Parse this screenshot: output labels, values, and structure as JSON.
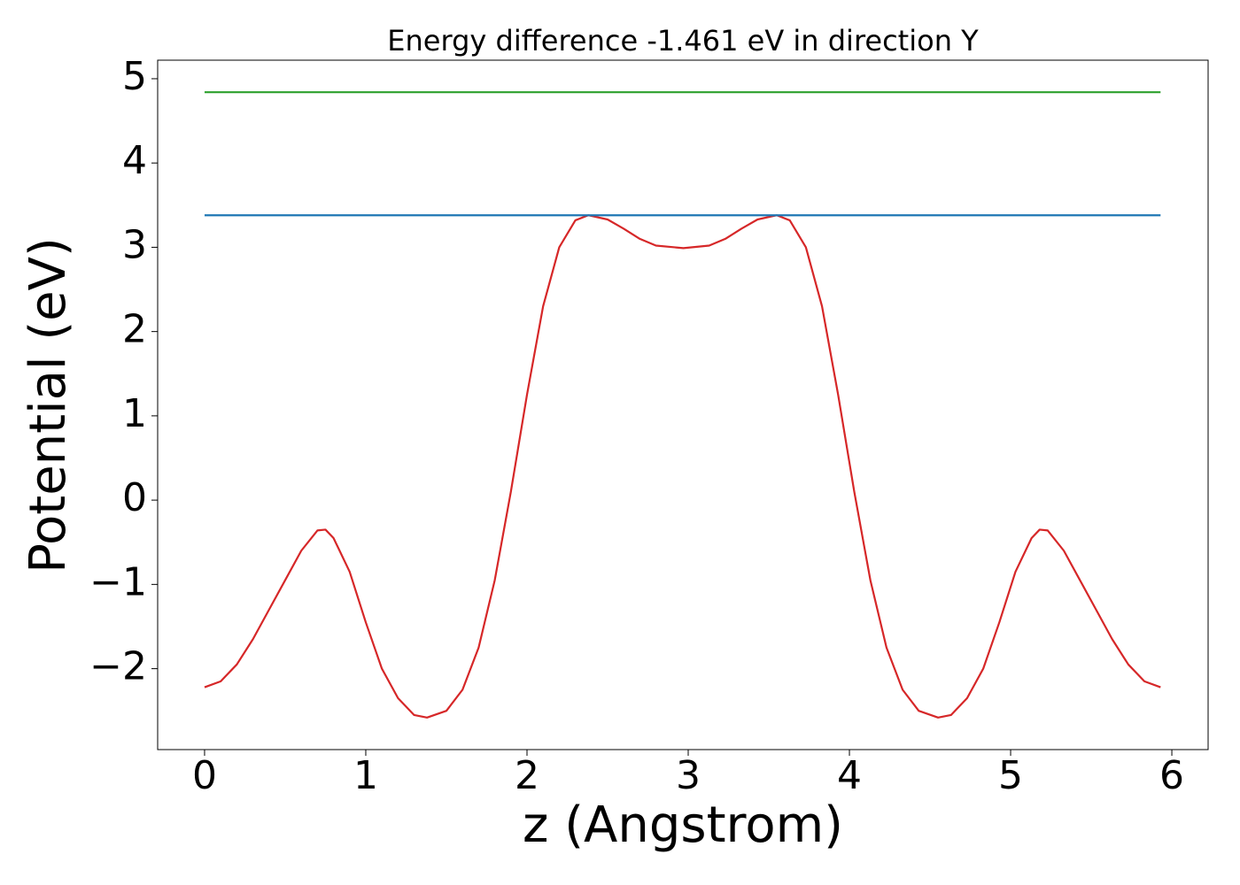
{
  "chart_data": {
    "type": "line",
    "title": "Energy difference -1.461 eV in direction Y",
    "xlabel": "z (Angstrom)",
    "ylabel": "Potential (eV)",
    "xlim": [
      -0.291,
      6.225
    ],
    "ylim": [
      -2.96,
      5.22
    ],
    "xticks": [
      0,
      1,
      2,
      3,
      4,
      5,
      6
    ],
    "yticks": [
      {
        "value": -2,
        "label": "−2"
      },
      {
        "value": -1,
        "label": "−1"
      },
      0,
      1,
      2,
      3,
      4,
      5
    ],
    "grid": false,
    "series": [
      {
        "color": "#d62728",
        "x": [
          0,
          0.1,
          0.2,
          0.3,
          0.4,
          0.5,
          0.6,
          0.7,
          0.75,
          0.8,
          0.9,
          1.0,
          1.1,
          1.2,
          1.3,
          1.38,
          1.5,
          1.6,
          1.7,
          1.8,
          1.9,
          2.0,
          2.1,
          2.2,
          2.3,
          2.38,
          2.5,
          2.6,
          2.7,
          2.8,
          2.97,
          3.13,
          3.23,
          3.33,
          3.43,
          3.55,
          3.63,
          3.73,
          3.83,
          3.93,
          4.03,
          4.13,
          4.23,
          4.33,
          4.43,
          4.55,
          4.63,
          4.73,
          4.83,
          4.93,
          5.03,
          5.13,
          5.18,
          5.23,
          5.33,
          5.43,
          5.53,
          5.63,
          5.73,
          5.83,
          5.93
        ],
        "values": [
          -2.22,
          -2.15,
          -1.95,
          -1.65,
          -1.3,
          -0.95,
          -0.6,
          -0.36,
          -0.35,
          -0.45,
          -0.85,
          -1.45,
          -2.0,
          -2.35,
          -2.55,
          -2.58,
          -2.5,
          -2.25,
          -1.75,
          -0.95,
          0.1,
          1.25,
          2.3,
          3.0,
          3.32,
          3.38,
          3.33,
          3.22,
          3.1,
          3.02,
          2.99,
          3.02,
          3.1,
          3.22,
          3.33,
          3.38,
          3.32,
          3.0,
          2.3,
          1.25,
          0.1,
          -0.95,
          -1.75,
          -2.25,
          -2.5,
          -2.58,
          -2.55,
          -2.35,
          -2.0,
          -1.45,
          -0.85,
          -0.45,
          -0.35,
          -0.36,
          -0.6,
          -0.95,
          -1.3,
          -1.65,
          -1.95,
          -2.15,
          -2.22
        ]
      },
      {
        "color": "#1f77b4",
        "x": [
          0,
          5.93
        ],
        "values": [
          3.38,
          3.38
        ]
      },
      {
        "color": "#2ca02c",
        "x": [
          0,
          5.93
        ],
        "values": [
          4.84,
          4.84
        ]
      }
    ]
  }
}
